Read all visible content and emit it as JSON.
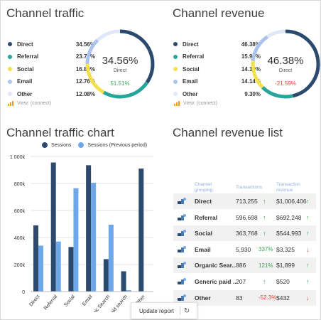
{
  "traffic": {
    "title": "Channel traffic",
    "legend": [
      {
        "label": "Direct",
        "value": "34.56%",
        "color": "#2c4a6e"
      },
      {
        "label": "Referral",
        "value": "23.77%",
        "color": "#26a69a"
      },
      {
        "label": "Social",
        "value": "16.89%",
        "color": "#f4e04d"
      },
      {
        "label": "Email",
        "value": "12.76%",
        "color": "#aac4ee"
      },
      {
        "label": "Other",
        "value": "12.08%",
        "color": "#dfe8f7"
      }
    ],
    "slices": [
      34.56,
      23.77,
      16.89,
      12.76,
      12.08
    ],
    "center_value": "34.56%",
    "center_label": "Direct",
    "change": "51.51%",
    "change_color": "#34a853",
    "view_link": "View: (connect)"
  },
  "revenue": {
    "title": "Channel revenue",
    "legend": [
      {
        "label": "Direct",
        "value": "46.38%",
        "color": "#2c4a6e"
      },
      {
        "label": "Referral",
        "value": "15.99%",
        "color": "#26a69a"
      },
      {
        "label": "Social",
        "value": "14.19%",
        "color": "#f4e04d"
      },
      {
        "label": "Email",
        "value": "14.14%",
        "color": "#aac4ee"
      },
      {
        "label": "Other",
        "value": "9.30%",
        "color": "#dfe8f7"
      }
    ],
    "slices": [
      46.38,
      15.99,
      14.19,
      14.14,
      9.3
    ],
    "center_value": "46.38%",
    "center_label": "Direct",
    "change": "-21.59%",
    "change_color": "#ea4335",
    "view_link": "View: (connect)"
  },
  "traffic_chart": {
    "title": "Channel traffic chart"
  },
  "chart_data": {
    "type": "bar",
    "categories": [
      "Direct",
      "Referral",
      "Social",
      "Email",
      "Organic Search",
      "Generic paid search",
      "Other"
    ],
    "series": [
      {
        "name": "Sessions",
        "color": "#2c4a6e",
        "values": [
          490000,
          955000,
          330000,
          935000,
          240000,
          150000,
          910000
        ]
      },
      {
        "name": "Sessions (Previous period)",
        "color": "#6fa8e8",
        "values": [
          340000,
          370000,
          765000,
          805000,
          495000,
          10000,
          0
        ]
      }
    ],
    "y_ticks": [
      "0",
      "200k",
      "400k",
      "600k",
      "800k",
      "1 000k"
    ],
    "x_tick_labels": [
      "Direct",
      "Referral",
      "Social",
      "Email",
      "Organic Search",
      "Generic paid search",
      "Other"
    ],
    "ylim": [
      0,
      1000000
    ],
    "legend_position": "top"
  },
  "revenue_list": {
    "title": "Channel revenue list",
    "headers": {
      "grouping_1": "Channel",
      "grouping_2": "grouping",
      "transactions": "Transactions",
      "revenue_1": "Transaction",
      "revenue_2": "revenue"
    },
    "rows": [
      {
        "name": "Direct",
        "transactions": "713,255",
        "tx_change": "",
        "tx_dir": "up",
        "revenue": "$1,006,406",
        "rev_dir": "up"
      },
      {
        "name": "Referral",
        "transactions": "596,698",
        "tx_change": "",
        "tx_dir": "up",
        "revenue": "$692,248",
        "rev_dir": "up"
      },
      {
        "name": "Social",
        "transactions": "363,768",
        "tx_change": "",
        "tx_dir": "up",
        "revenue": "$544,993",
        "rev_dir": "up"
      },
      {
        "name": "Email",
        "transactions": "5,930",
        "tx_change": "337%",
        "tx_dir": "up",
        "revenue": "$3,325",
        "rev_dir": "down"
      },
      {
        "name": "Organic Sear...",
        "transactions": "886",
        "tx_change": "121%",
        "tx_dir": "up",
        "revenue": "$1,899",
        "rev_dir": "up"
      },
      {
        "name": "Generic paid ...",
        "transactions": "207",
        "tx_change": "",
        "tx_dir": "up",
        "revenue": "$520",
        "rev_dir": "up"
      },
      {
        "name": "Other",
        "transactions": "83",
        "tx_change": "-52.3%",
        "tx_dir": "down",
        "revenue": "$432",
        "rev_dir": "down"
      }
    ]
  },
  "update_button": {
    "label": "Update report",
    "refresh_glyph": "↻"
  },
  "arrows": {
    "up": "↑",
    "down": "↓"
  }
}
